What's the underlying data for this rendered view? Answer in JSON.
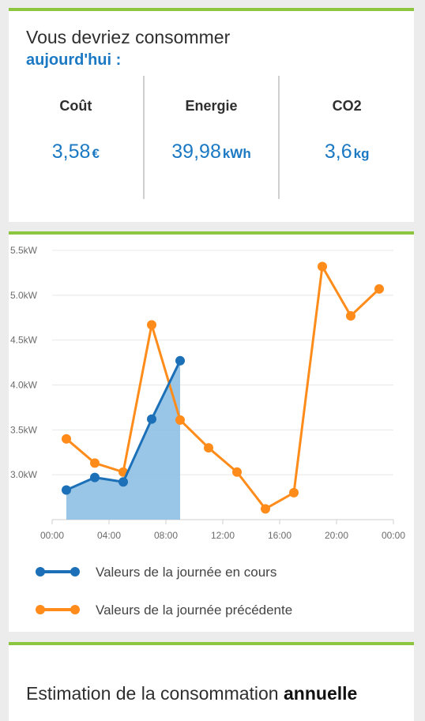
{
  "today_card": {
    "line1": "Vous devriez consommer",
    "highlight": "aujourd'hui",
    "suffix": " :",
    "metrics": [
      {
        "label": "Coût",
        "value": "3,58",
        "unit": "€"
      },
      {
        "label": "Energie",
        "value": "39,98",
        "unit": "kWh"
      },
      {
        "label": "CO2",
        "value": "3,6",
        "unit": "kg"
      }
    ]
  },
  "chart_data": {
    "type": "line",
    "x_ticks": [
      "00:00",
      "04:00",
      "08:00",
      "12:00",
      "16:00",
      "20:00",
      "00:00"
    ],
    "y_ticks": [
      "3.0kW",
      "3.5kW",
      "4.0kW",
      "4.5kW",
      "5.0kW",
      "5.5kW"
    ],
    "ylim": [
      2.5,
      5.5
    ],
    "grid": true,
    "series": [
      {
        "name": "Valeurs de la journée en cours",
        "color": "#1c70b8",
        "fill_color": "#8ebfe3",
        "area": true,
        "x": [
          1,
          3,
          5,
          7,
          9
        ],
        "y": [
          2.83,
          2.97,
          2.92,
          3.62,
          4.27
        ]
      },
      {
        "name": "Valeurs de la journée précédente",
        "color": "#ff8c1a",
        "area": false,
        "x": [
          1,
          3,
          5,
          7,
          9,
          11,
          13,
          15,
          17,
          19,
          21,
          23
        ],
        "y": [
          3.4,
          3.13,
          3.03,
          4.67,
          3.61,
          3.3,
          3.03,
          2.62,
          2.8,
          5.32,
          4.77,
          5.07
        ]
      }
    ]
  },
  "annual_card": {
    "text": "Estimation de la consommation ",
    "bold": "annuelle"
  }
}
